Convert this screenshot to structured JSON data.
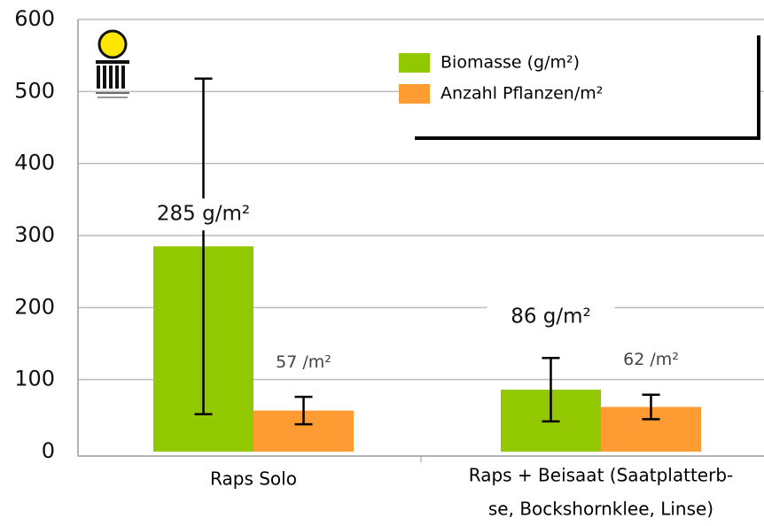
{
  "chart_data": {
    "type": "bar",
    "categories": [
      [
        "Raps Solo"
      ],
      [
        "Raps + Beisaat (Saatplatterb-",
        "se, Bockshornklee, Linse)"
      ]
    ],
    "series": [
      {
        "name": "Biomasse (g/m²)",
        "color": "#92c800",
        "values": [
          285,
          86
        ],
        "value_labels": [
          "285 g/m²",
          "86 g/m²"
        ],
        "errors": [
          233,
          44
        ]
      },
      {
        "name": "Anzahl Pflanzen/m²",
        "color": "#ff9b33",
        "values": [
          57,
          62
        ],
        "value_labels": [
          "57 /m²",
          "62 /m²"
        ],
        "errors": [
          19,
          17
        ]
      }
    ],
    "ylim": [
      0,
      600
    ],
    "yticks": [
      0,
      100,
      200,
      300,
      400,
      500,
      600
    ],
    "grid": true,
    "legend": "top-right"
  }
}
